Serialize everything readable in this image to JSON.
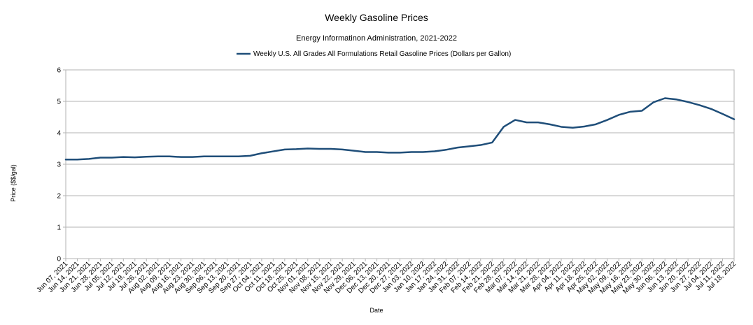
{
  "chart_data": {
    "type": "line",
    "title": "Weekly Gasoline Prices",
    "subtitle": "Energy Informatinon Administration, 2021-2022",
    "xlabel": "Date",
    "ylabel": "Price ($$/gal)",
    "ylim": [
      0,
      6
    ],
    "yticks": [
      0,
      1,
      2,
      3,
      4,
      5,
      6
    ],
    "grid": true,
    "legend_position": "top-center",
    "series_color": "#1f4e79",
    "x": [
      "Jun 07, 2021",
      "Jun 14, 2021",
      "Jun 21, 2021",
      "Jun 28, 2021",
      "Jul 05, 2021",
      "Jul 12, 2021",
      "Jul 19, 2021",
      "Jul 26, 2021",
      "Aug 02, 2021",
      "Aug 09, 2021",
      "Aug 16, 2021",
      "Aug 23, 2021",
      "Aug 30, 2021",
      "Sep 06, 2021",
      "Sep 13, 2021",
      "Sep 20, 2021",
      "Sep 27, 2021",
      "Oct 04, 2021",
      "Oct 11, 2021",
      "Oct 18, 2021",
      "Oct 25, 2021",
      "Nov 01, 2021",
      "Nov 08, 2021",
      "Nov 15, 2021",
      "Nov 22, 2021",
      "Nov 29, 2021",
      "Dec 06, 2021",
      "Dec 13, 2021",
      "Dec 20, 2021",
      "Dec 27, 2021",
      "Jan 03, 2022",
      "Jan 10, 2022",
      "Jan 17, 2022",
      "Jan 24, 2022",
      "Jan 31, 2022",
      "Feb 07, 2022",
      "Feb 14, 2022",
      "Feb 21, 2022",
      "Feb 28, 2022",
      "Mar 07, 2022",
      "Mar 14, 2022",
      "Mar 21, 2022",
      "Mar 28, 2022",
      "Apr 04, 2022",
      "Apr 11, 2022",
      "Apr 18, 2022",
      "Apr 25, 2022",
      "May 02, 2022",
      "May 09, 2022",
      "May 16, 2022",
      "May 23, 2022",
      "May 30, 2022",
      "Jun 06, 2022",
      "Jun 13, 2022",
      "Jun 20, 2022",
      "Jun 27, 2022",
      "Jul 04, 2022",
      "Jul 11, 2022",
      "Jul 18, 2022"
    ],
    "series": [
      {
        "name": "Weekly U.S. All Grades All Formulations Retail Gasoline Prices  (Dollars per Gallon)",
        "values": [
          3.15,
          3.15,
          3.17,
          3.21,
          3.21,
          3.23,
          3.22,
          3.24,
          3.25,
          3.25,
          3.23,
          3.23,
          3.25,
          3.25,
          3.25,
          3.25,
          3.27,
          3.35,
          3.41,
          3.47,
          3.48,
          3.5,
          3.49,
          3.49,
          3.47,
          3.43,
          3.39,
          3.39,
          3.37,
          3.37,
          3.39,
          3.39,
          3.41,
          3.46,
          3.53,
          3.57,
          3.61,
          3.69,
          4.19,
          4.41,
          4.33,
          4.33,
          4.27,
          4.19,
          4.16,
          4.2,
          4.27,
          4.41,
          4.57,
          4.67,
          4.7,
          4.97,
          5.1,
          5.06,
          4.98,
          4.88,
          4.76,
          4.6,
          4.43
        ]
      }
    ]
  }
}
